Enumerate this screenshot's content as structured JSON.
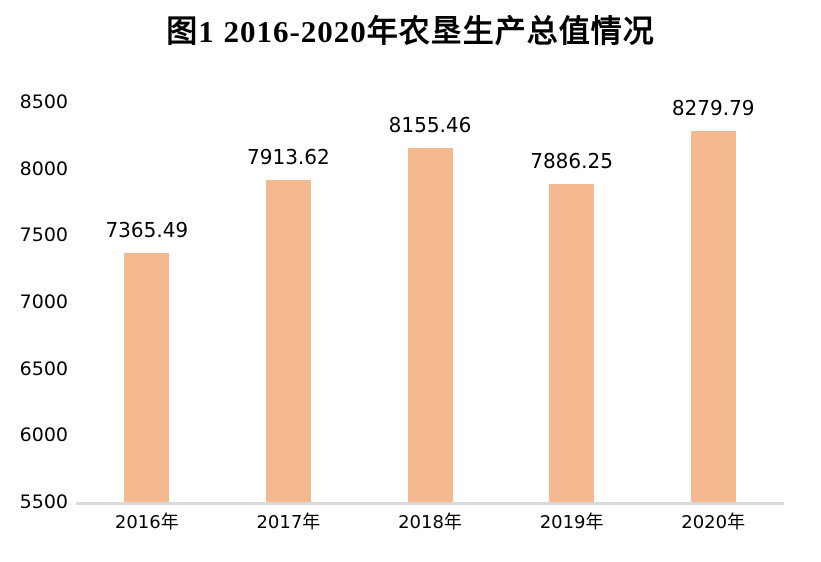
{
  "colors": {
    "bar_fill": "#F4B98F",
    "axis_line": "#D9D9D9",
    "title_text": "#000000",
    "label_text": "#000000",
    "background": "#FFFFFF"
  },
  "chart_data": {
    "type": "bar",
    "title": "图1 2016-2020年农垦生产总值情况",
    "categories": [
      "2016年",
      "2017年",
      "2018年",
      "2019年",
      "2020年"
    ],
    "values": [
      7365.49,
      7913.62,
      8155.46,
      7886.25,
      8279.79
    ],
    "data_labels": [
      "7365.49",
      "7913.62",
      "8155.46",
      "7886.25",
      "8279.79"
    ],
    "xlabel": "",
    "ylabel": "",
    "ylim": [
      5500,
      8500
    ],
    "ytick_step": 500,
    "yticks": [
      "8500",
      "8000",
      "7500",
      "7000",
      "6500",
      "6000",
      "5500"
    ],
    "grid": false,
    "legend": "none",
    "bar_color": "#F4B98F"
  }
}
